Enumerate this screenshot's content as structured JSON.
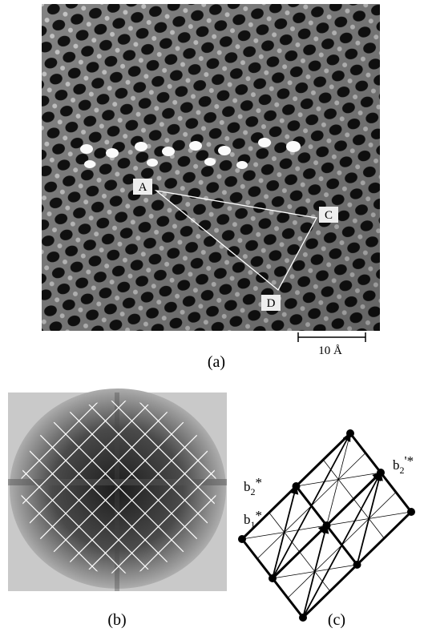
{
  "panels": {
    "a": {
      "label": "(a)",
      "points": [
        "A",
        "C",
        "D"
      ],
      "scale_bar": "10 Å"
    },
    "b": {
      "label": "(b)"
    },
    "c": {
      "label": "(c)",
      "vectors": [
        {
          "base": "b",
          "sub": "2",
          "sup": "*"
        },
        {
          "base": "b",
          "sub": "1",
          "sup": "*"
        },
        {
          "base": "b",
          "sub": "2",
          "sup": "'*"
        }
      ]
    }
  }
}
